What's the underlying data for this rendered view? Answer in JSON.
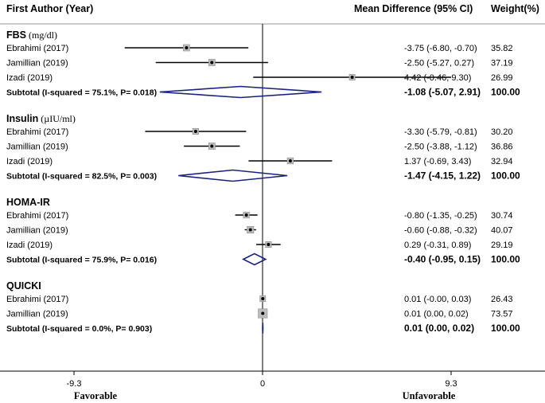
{
  "chart_data": {
    "type": "forest",
    "header": {
      "study": "First Author (Year)",
      "effect": "Mean Difference (95% CI)",
      "weight": "Weight(%)"
    },
    "groups": [
      {
        "name": "FBS",
        "unit": "(mg/dl)",
        "studies": [
          {
            "label": "Ebrahimi (2017)",
            "est": -3.75,
            "lo": -6.8,
            "hi": -0.7,
            "ci_text": "-3.75 (-6.80, -0.70)",
            "weight": "35.82"
          },
          {
            "label": "Jamillian (2019)",
            "est": -2.5,
            "lo": -5.27,
            "hi": 0.27,
            "ci_text": "-2.50 (-5.27, 0.27)",
            "weight": "37.19"
          },
          {
            "label": "Izadi (2019)",
            "est": 4.42,
            "lo": -0.46,
            "hi": 9.3,
            "ci_text": "4.42 (-0.46, 9.30)",
            "weight": "26.99"
          }
        ],
        "subtotal": {
          "label": "Subtotal  (I-squared = 75.1%, P= 0.018)",
          "est": -1.08,
          "lo": -5.07,
          "hi": 2.91,
          "ci_text": "-1.08 (-5.07, 2.91)",
          "weight": "100.00"
        }
      },
      {
        "name": "Insulin",
        "unit": "(µIU/ml)",
        "studies": [
          {
            "label": "Ebrahimi (2017)",
            "est": -3.3,
            "lo": -5.79,
            "hi": -0.81,
            "ci_text": "-3.30 (-5.79, -0.81)",
            "weight": "30.20"
          },
          {
            "label": "Jamillian (2019)",
            "est": -2.5,
            "lo": -3.88,
            "hi": -1.12,
            "ci_text": "-2.50 (-3.88, -1.12)",
            "weight": "36.86"
          },
          {
            "label": "Izadi (2019)",
            "est": 1.37,
            "lo": -0.69,
            "hi": 3.43,
            "ci_text": "1.37 (-0.69, 3.43)",
            "weight": "32.94"
          }
        ],
        "subtotal": {
          "label": "Subtotal  (I-squared = 82.5%, P= 0.003)",
          "est": -1.47,
          "lo": -4.15,
          "hi": 1.22,
          "ci_text": "-1.47 (-4.15, 1.22)",
          "weight": "100.00"
        }
      },
      {
        "name": "HOMA-IR",
        "unit": "",
        "studies": [
          {
            "label": "Ebrahimi (2017)",
            "est": -0.8,
            "lo": -1.35,
            "hi": -0.25,
            "ci_text": "-0.80 (-1.35, -0.25)",
            "weight": "30.74"
          },
          {
            "label": "Jamillian (2019)",
            "est": -0.6,
            "lo": -0.88,
            "hi": -0.32,
            "ci_text": "-0.60 (-0.88, -0.32)",
            "weight": "40.07"
          },
          {
            "label": "Izadi (2019)",
            "est": 0.29,
            "lo": -0.31,
            "hi": 0.89,
            "ci_text": "0.29 (-0.31, 0.89)",
            "weight": "29.19"
          }
        ],
        "subtotal": {
          "label": "Subtotal  (I-squared = 75.9%, P= 0.016)",
          "est": -0.4,
          "lo": -0.95,
          "hi": 0.15,
          "ci_text": "-0.40 (-0.95, 0.15)",
          "weight": "100.00"
        }
      },
      {
        "name": "QUICKI",
        "unit": "",
        "studies": [
          {
            "label": "Ebrahimi (2017)",
            "est": 0.01,
            "lo": -0.0,
            "hi": 0.03,
            "ci_text": "0.01 (-0.00, 0.03)",
            "weight": "26.43"
          },
          {
            "label": "Jamillian (2019)",
            "est": 0.01,
            "lo": 0.0,
            "hi": 0.02,
            "ci_text": "0.01 (0.00, 0.02)",
            "weight": "73.57"
          }
        ],
        "subtotal": {
          "label": "Subtotal  (I-squared = 0.0%, P= 0.903)",
          "est": 0.01,
          "lo": 0.0,
          "hi": 0.02,
          "ci_text": "0.01 (0.00, 0.02)",
          "weight": "100.00"
        }
      }
    ],
    "x_ticks": [
      {
        "value": -9.3,
        "label": "-9.3"
      },
      {
        "value": 0,
        "label": "0"
      },
      {
        "value": 9.3,
        "label": "9.3"
      }
    ],
    "xlim": [
      -9.3,
      9.3
    ],
    "xlabel_left": "Favorable",
    "xlabel_right": "Unfavorable",
    "colors": {
      "line": "#000000",
      "box_fill": "#bdbdbd",
      "box_stroke": "#8a8a8a",
      "diamond": "#1a237e",
      "header_rule": "#9a9a9a",
      "zero_line": "#000000"
    }
  }
}
